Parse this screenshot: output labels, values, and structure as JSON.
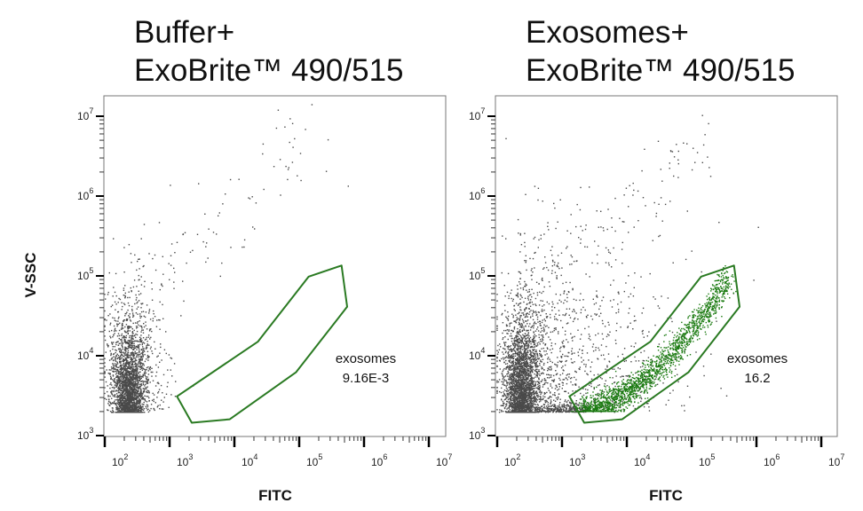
{
  "chart_data": [
    {
      "type": "scatter",
      "title_lines": [
        "Buffer+",
        "ExoBrite™ 490/515"
      ],
      "xlabel": "FITC",
      "ylabel": "V-SSC",
      "xscale": "log",
      "yscale": "log",
      "xlim": [
        100,
        18000000
      ],
      "ylim": [
        1000,
        17000000
      ],
      "x_ticks": [
        {
          "base": "10",
          "exp": "2"
        },
        {
          "base": "10",
          "exp": "3"
        },
        {
          "base": "10",
          "exp": "4"
        },
        {
          "base": "10",
          "exp": "5"
        },
        {
          "base": "10",
          "exp": "6"
        },
        {
          "base": "10",
          "exp": "7"
        }
      ],
      "y_ticks": [
        {
          "base": "10",
          "exp": "3"
        },
        {
          "base": "10",
          "exp": "4"
        },
        {
          "base": "10",
          "exp": "5"
        },
        {
          "base": "10",
          "exp": "6"
        },
        {
          "base": "10",
          "exp": "7"
        }
      ],
      "grid": false,
      "point_color": "#4a4a4a",
      "populations": [
        {
          "description": "main event cloud",
          "fitc_center": 230,
          "ssc_range": [
            2000,
            200000
          ]
        },
        {
          "description": "sparse diagonal tail",
          "fitc_range": [
            500,
            400000
          ],
          "ssc_range": [
            60000,
            6000000
          ]
        }
      ],
      "gate": {
        "name": "exosomes",
        "value": "9.16E-3",
        "color": "#2a7a22",
        "vertices": [
          [
            1300,
            3100
          ],
          [
            2200,
            1450
          ],
          [
            8500,
            1600
          ],
          [
            89000,
            6200
          ],
          [
            550000,
            41000
          ],
          [
            450000,
            135000
          ],
          [
            140000,
            98000
          ],
          [
            23000,
            15000
          ]
        ]
      }
    },
    {
      "type": "scatter",
      "title_lines": [
        "Exosomes+",
        "ExoBrite™ 490/515"
      ],
      "xlabel": "FITC",
      "xscale": "log",
      "yscale": "log",
      "xlim": [
        100,
        18000000
      ],
      "ylim": [
        1000,
        17000000
      ],
      "x_ticks": [
        {
          "base": "10",
          "exp": "2"
        },
        {
          "base": "10",
          "exp": "3"
        },
        {
          "base": "10",
          "exp": "4"
        },
        {
          "base": "10",
          "exp": "5"
        },
        {
          "base": "10",
          "exp": "6"
        },
        {
          "base": "10",
          "exp": "7"
        }
      ],
      "y_ticks": [
        {
          "base": "10",
          "exp": "3"
        },
        {
          "base": "10",
          "exp": "4"
        },
        {
          "base": "10",
          "exp": "5"
        },
        {
          "base": "10",
          "exp": "6"
        },
        {
          "base": "10",
          "exp": "7"
        }
      ],
      "grid": false,
      "point_color": "#4a4a4a",
      "gated_point_color": "#1a7a10",
      "populations": [
        {
          "description": "main event cloud",
          "fitc_center": 230,
          "ssc_range": [
            2000,
            200000
          ]
        },
        {
          "description": "broad scatter",
          "fitc_range": [
            300,
            1000000
          ],
          "ssc_range": [
            2000,
            6000000
          ]
        },
        {
          "description": "gated exosome band (green)",
          "fitc_range": [
            2000,
            400000
          ],
          "ssc_range": [
            2000,
            100000
          ]
        }
      ],
      "gate": {
        "name": "exosomes",
        "value": "16.2",
        "color": "#2a7a22",
        "vertices": [
          [
            1300,
            3100
          ],
          [
            2200,
            1450
          ],
          [
            8500,
            1600
          ],
          [
            89000,
            6200
          ],
          [
            550000,
            41000
          ],
          [
            450000,
            135000
          ],
          [
            140000,
            98000
          ],
          [
            23000,
            15000
          ]
        ]
      }
    }
  ]
}
